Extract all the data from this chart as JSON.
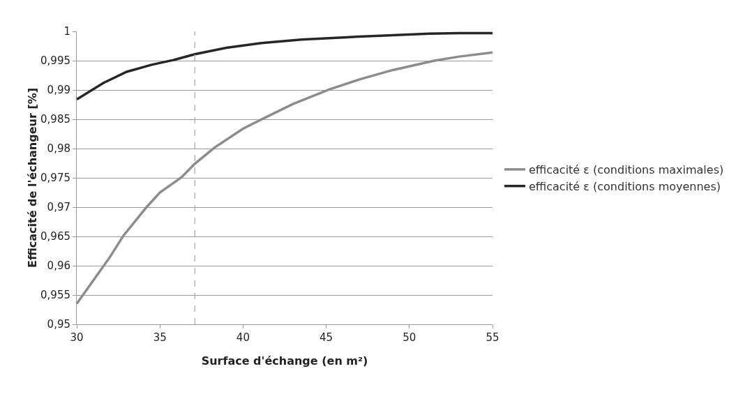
{
  "chart_data": {
    "type": "line",
    "xlabel": "Surface d'échange (en m²)",
    "ylabel": "Efficacité de l'échangeur [%]",
    "xlim": [
      30,
      55
    ],
    "xticks": [
      30,
      35,
      40,
      45,
      50,
      55
    ],
    "ylim": [
      0.95,
      1
    ],
    "yticks": [
      {
        "value": 0.95,
        "label": "0,95"
      },
      {
        "value": 0.955,
        "label": "0,955"
      },
      {
        "value": 0.96,
        "label": "0,96"
      },
      {
        "value": 0.965,
        "label": "0,965"
      },
      {
        "value": 0.97,
        "label": "0,97"
      },
      {
        "value": 0.975,
        "label": "0,975"
      },
      {
        "value": 0.98,
        "label": "0,98"
      },
      {
        "value": 0.985,
        "label": "0,985"
      },
      {
        "value": 0.99,
        "label": "0,99"
      },
      {
        "value": 0.995,
        "label": "0,995"
      },
      {
        "value": 1,
        "label": "1"
      }
    ],
    "grid": "y",
    "legend": "right",
    "marker": "none",
    "line_style": "solid",
    "ref_lines": [
      {
        "axis": "x",
        "value": 37.1,
        "color": "#a6a6a6",
        "line_style": "dashed"
      }
    ],
    "series": [
      {
        "name": "efficacité ε (conditions maximales)",
        "color": "#8c8c8c",
        "x": [
          30,
          31,
          32,
          32.8,
          34.2,
          35,
          36.3,
          37.1,
          38.3,
          40,
          41.2,
          43,
          45.2,
          47,
          49,
          51.5,
          53,
          55
        ],
        "values": [
          0.9535,
          0.9575,
          0.9615,
          0.9651,
          0.97,
          0.9725,
          0.9751,
          0.9774,
          0.9802,
          0.9834,
          0.9851,
          0.9876,
          0.9901,
          0.9918,
          0.9934,
          0.995,
          0.9957,
          0.9964
        ]
      },
      {
        "name": "efficacité ε (conditions moyennes)",
        "color": "#262626",
        "x": [
          30,
          31.6,
          33,
          34.5,
          35.8,
          37.1,
          39,
          41.1,
          43.5,
          46.2,
          48.5,
          51.2,
          53,
          55
        ],
        "values": [
          0.9884,
          0.9912,
          0.9931,
          0.9943,
          0.9951,
          0.9961,
          0.9972,
          0.998,
          0.9986,
          0.999,
          0.9993,
          0.9996,
          0.9997,
          0.9997
        ]
      }
    ]
  }
}
